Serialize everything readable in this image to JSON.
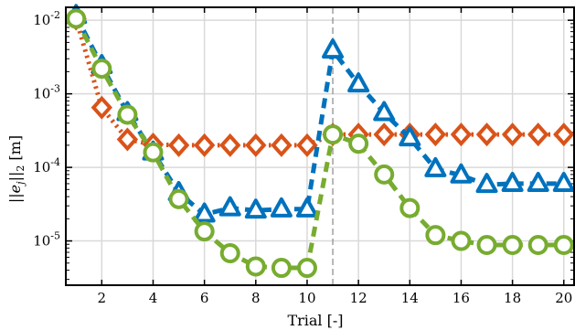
{
  "chart_data": {
    "type": "line",
    "xlabel": "Trial [-]",
    "ylabel": "||e_j||_2 [m]",
    "ylabel_parts": {
      "norm_open": "||",
      "e": "e",
      "j": "j",
      "norm_close": "||",
      "sub2": "2",
      "unit": " [m]"
    },
    "yscale": "log",
    "xlim": [
      0.6,
      20.4
    ],
    "ylim": [
      2.5e-06,
      0.015
    ],
    "grid": true,
    "xticks": [
      2,
      4,
      6,
      8,
      10,
      12,
      14,
      16,
      18,
      20
    ],
    "xtick_labels": [
      "2",
      "4",
      "6",
      "8",
      "10",
      "12",
      "14",
      "16",
      "18",
      "20"
    ],
    "yticks": [
      {
        "value": 1e-05,
        "mantissa": "10",
        "exponent": "-5"
      },
      {
        "value": 0.0001,
        "mantissa": "10",
        "exponent": "-4"
      },
      {
        "value": 0.001,
        "mantissa": "10",
        "exponent": "-3"
      },
      {
        "value": 0.01,
        "mantissa": "10",
        "exponent": "-2"
      }
    ],
    "vline": {
      "x": 11,
      "color": "#888888",
      "style": "dashed"
    },
    "x": [
      1,
      2,
      3,
      4,
      5,
      6,
      7,
      8,
      9,
      10,
      11,
      12,
      13,
      14,
      15,
      16,
      17,
      18,
      19,
      20
    ],
    "series": [
      {
        "color": "#D95319",
        "marker": "diamond",
        "linestyle": "dotted",
        "values": [
          0.0105,
          0.00065,
          0.00024,
          0.000205,
          0.0002,
          0.0002,
          0.0002,
          0.0002,
          0.0002,
          0.0002,
          0.00028,
          0.00028,
          0.00028,
          0.00028,
          0.00028,
          0.00028,
          0.00028,
          0.00028,
          0.00028,
          0.00028
        ]
      },
      {
        "color": "#0072BD",
        "marker": "triangle",
        "linestyle": "dashed",
        "values": [
          0.0115,
          0.0024,
          0.00055,
          0.00016,
          4.5e-05,
          2.3e-05,
          2.8e-05,
          2.6e-05,
          2.7e-05,
          2.7e-05,
          0.0039,
          0.00135,
          0.00055,
          0.00025,
          9.5e-05,
          7.8e-05,
          5.8e-05,
          6e-05,
          6e-05,
          6e-05
        ]
      },
      {
        "color": "#77AC30",
        "marker": "circle",
        "linestyle": "dashed",
        "values": [
          0.0105,
          0.0022,
          0.00052,
          0.00016,
          3.7e-05,
          1.35e-05,
          6.8e-06,
          4.5e-06,
          4.3e-06,
          4.3e-06,
          0.00028,
          0.00021,
          8e-05,
          2.8e-05,
          1.2e-05,
          1e-05,
          8.8e-06,
          8.8e-06,
          8.8e-06,
          8.8e-06
        ]
      }
    ]
  }
}
